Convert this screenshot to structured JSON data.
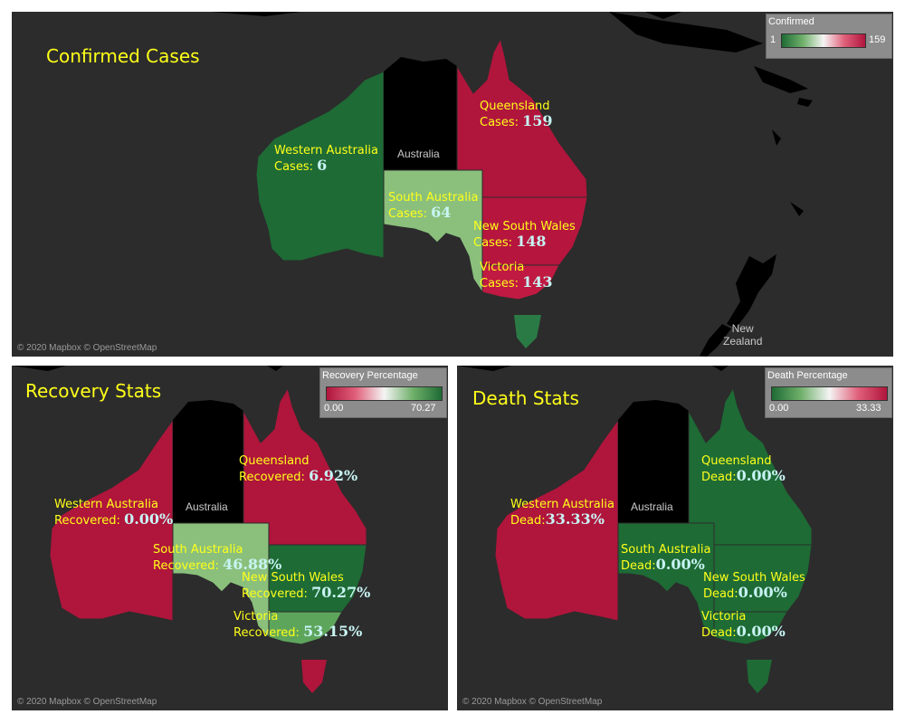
{
  "colors": {
    "background": "#2c2c2c",
    "nt": "#000000",
    "title": "#ffff1a",
    "value": "#c8f4f4",
    "green_dark": "#1e6b35",
    "green_light": "#8ac07c",
    "red": "#b0153c"
  },
  "panels": {
    "confirmed": {
      "title": "Confirmed Cases",
      "country_label": "Australia",
      "nz_label": "New\nZealand",
      "attribution": "© 2020 Mapbox © OpenStreetMap",
      "legend": {
        "title": "Confirmed",
        "min": "1",
        "max": "159",
        "gradient": "green-to-red"
      },
      "regions": [
        {
          "name": "Western Australia",
          "value_prefix": "Cases: ",
          "value": "6",
          "value_num": 6
        },
        {
          "name": "Queensland",
          "value_prefix": "Cases: ",
          "value": "159",
          "value_num": 159
        },
        {
          "name": "South Australia",
          "value_prefix": "Cases: ",
          "value": "64",
          "value_num": 64
        },
        {
          "name": "New South Wales",
          "value_prefix": "Cases: ",
          "value": "148",
          "value_num": 148
        },
        {
          "name": "Victoria",
          "value_prefix": "Cases: ",
          "value": "143",
          "value_num": 143
        }
      ]
    },
    "recovery": {
      "title": "Recovery Stats",
      "country_label": "Australia",
      "attribution": "© 2020 Mapbox © OpenStreetMap",
      "legend": {
        "title": "Recovery Percentage",
        "min": "0.00",
        "max": "70.27",
        "gradient": "red-to-green"
      },
      "regions": [
        {
          "name": "Queensland",
          "value_prefix": "Recovered: ",
          "value": "6.92%",
          "value_num": 6.92
        },
        {
          "name": "Western Australia",
          "value_prefix": "Recovered: ",
          "value": "0.00%",
          "value_num": 0.0
        },
        {
          "name": "South Australia",
          "value_prefix": "Recovered: ",
          "value": "46.88%",
          "value_num": 46.88
        },
        {
          "name": "New South Wales",
          "value_prefix": "Recovered: ",
          "value": "70.27%",
          "value_num": 70.27
        },
        {
          "name": "Victoria",
          "value_prefix": "Recovered: ",
          "value": "53.15%",
          "value_num": 53.15
        }
      ]
    },
    "death": {
      "title": "Death Stats",
      "country_label": "Australia",
      "attribution": "© 2020 Mapbox © OpenStreetMap",
      "legend": {
        "title": "Death Percentage",
        "min": "0.00",
        "max": "33.33",
        "gradient": "green-to-red"
      },
      "regions": [
        {
          "name": "Queensland",
          "value_prefix": "Dead:",
          "value": "0.00%",
          "value_num": 0.0
        },
        {
          "name": "Western Australia",
          "value_prefix": "Dead:",
          "value": "33.33%",
          "value_num": 33.33
        },
        {
          "name": "South Australia",
          "value_prefix": "Dead:",
          "value": "0.00%",
          "value_num": 0.0
        },
        {
          "name": "New South Wales",
          "value_prefix": "Dead:",
          "value": "0.00%",
          "value_num": 0.0
        },
        {
          "name": "Victoria",
          "value_prefix": "Dead:",
          "value": "0.00%",
          "value_num": 0.0
        }
      ]
    }
  }
}
